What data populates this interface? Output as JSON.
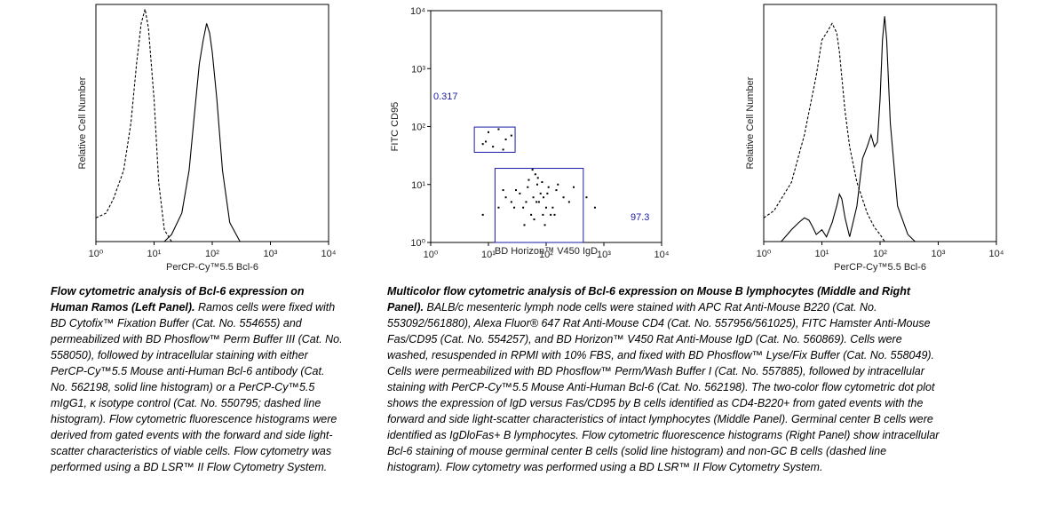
{
  "chart_data": [
    {
      "type": "line",
      "xlabel": "PerCP-Cy™5.5 Bcl-6",
      "ylabel": "Relative Cell Number",
      "xlog": true,
      "xlim": [
        1,
        10000
      ],
      "xticks": [
        {
          "value": 1,
          "label": "10⁰"
        },
        {
          "value": 10,
          "label": "10¹"
        },
        {
          "value": 100,
          "label": "10²"
        },
        {
          "value": 1000,
          "label": "10³"
        },
        {
          "value": 10000,
          "label": "10⁴"
        }
      ],
      "ylim": [
        0,
        100
      ],
      "series": [
        {
          "color": "#000000",
          "dashed": true,
          "x": [
            1,
            1.5,
            2,
            3,
            4,
            5,
            6,
            7,
            8,
            10,
            12,
            15,
            20
          ],
          "values": [
            10,
            12,
            18,
            30,
            50,
            75,
            92,
            98,
            90,
            60,
            25,
            5,
            0
          ]
        },
        {
          "color": "#000000",
          "dashed": false,
          "x": [
            15,
            20,
            30,
            40,
            50,
            60,
            70,
            80,
            90,
            100,
            120,
            150,
            200,
            300
          ],
          "values": [
            0,
            3,
            12,
            30,
            55,
            75,
            85,
            92,
            88,
            80,
            60,
            30,
            8,
            0
          ]
        }
      ]
    },
    {
      "type": "scatter",
      "xlabel": "BD Horizon™ V450 IgD",
      "ylabel": "FITC CD95",
      "xlog": true,
      "ylog": true,
      "xlim": [
        1,
        10000
      ],
      "xticks": [
        {
          "value": 1,
          "label": "10⁰"
        },
        {
          "value": 10,
          "label": "10¹"
        },
        {
          "value": 100,
          "label": "10²"
        },
        {
          "value": 1000,
          "label": "10³"
        },
        {
          "value": 10000,
          "label": "10⁴"
        }
      ],
      "ylim": [
        1,
        10000
      ],
      "yticks": [
        {
          "value": 1,
          "label": "10⁰"
        },
        {
          "value": 10,
          "label": "10¹"
        },
        {
          "value": 100,
          "label": "10²"
        },
        {
          "value": 1000,
          "label": "10³"
        },
        {
          "value": 10000,
          "label": "10⁴"
        }
      ],
      "gate_color": "#1a1aa6",
      "gates": [
        {
          "xrange": [
            5.7,
            29
          ],
          "yrange": [
            36,
            98
          ],
          "value": 0.317
        },
        {
          "xrange": [
            13,
            440
          ],
          "yrange": [
            1,
            19
          ],
          "value": 97.3
        }
      ],
      "series": [
        {
          "color": "#000000",
          "x": [
            60,
            45,
            80,
            100,
            30,
            70,
            120,
            50,
            90,
            25,
            150,
            40,
            65,
            110,
            55,
            75,
            35,
            200,
            85,
            95,
            20,
            130,
            48,
            62,
            72,
            160,
            28,
            105,
            58,
            140,
            18,
            250,
            42,
            68,
            88,
            300,
            15,
            500,
            700,
            8,
            8,
            10,
            12,
            15,
            20,
            25,
            9,
            18
          ],
          "values": [
            6,
            5,
            7,
            4,
            8,
            10,
            3,
            12,
            6,
            5,
            8,
            4,
            15,
            9,
            3,
            5,
            7,
            6,
            11,
            2,
            6,
            4,
            9,
            2.5,
            13,
            10,
            4,
            7,
            18,
            3,
            8,
            5,
            2,
            5,
            3,
            9,
            4,
            6,
            4,
            3,
            50,
            80,
            45,
            90,
            60,
            70,
            55,
            40
          ]
        }
      ]
    },
    {
      "type": "line",
      "xlabel": "PerCP-Cy™5.5 Bcl-6",
      "ylabel": "Relative Cell Number",
      "xlog": true,
      "xlim": [
        1,
        10000
      ],
      "xticks": [
        {
          "value": 1,
          "label": "10⁰"
        },
        {
          "value": 10,
          "label": "10¹"
        },
        {
          "value": 100,
          "label": "10²"
        },
        {
          "value": 1000,
          "label": "10³"
        },
        {
          "value": 10000,
          "label": "10⁴"
        }
      ],
      "ylim": [
        0,
        100
      ],
      "series": [
        {
          "color": "#000000",
          "dashed": true,
          "x": [
            1,
            1.5,
            2,
            3,
            5,
            8,
            10,
            12,
            15,
            18,
            20,
            25,
            30,
            40,
            60,
            80,
            100,
            120
          ],
          "values": [
            10,
            13,
            18,
            25,
            45,
            70,
            85,
            88,
            92,
            88,
            80,
            55,
            40,
            25,
            12,
            6,
            3,
            0
          ]
        },
        {
          "color": "#000000",
          "dashed": false,
          "x": [
            1,
            2,
            3,
            4,
            5,
            6,
            7,
            8,
            10,
            12,
            15,
            18,
            20,
            22,
            25,
            30,
            40,
            50,
            60,
            70,
            80,
            90,
            100,
            110,
            120,
            130,
            150,
            200,
            300,
            400
          ],
          "values": [
            0,
            0,
            5,
            8,
            10,
            9,
            6,
            3,
            5,
            2,
            8,
            15,
            20,
            18,
            10,
            2,
            15,
            35,
            40,
            45,
            40,
            42,
            60,
            85,
            95,
            85,
            50,
            15,
            3,
            0
          ]
        }
      ]
    }
  ],
  "captions": [
    {
      "heading": "Flow cytometric analysis of Bcl-6 expression on Human Ramos (Left Panel).",
      "body": "Ramos cells were fixed with BD Cytofix™ Fixation Buffer (Cat. No. 554655) and permeabilized with BD Phosflow™ Perm Buffer III (Cat. No. 558050), followed by intracellular staining with either PerCP-Cy™5.5 Mouse anti-Human Bcl-6 antibody (Cat. No. 562198, solid line histogram) or a PerCP-Cy™5.5 mIgG1, κ isotype control (Cat. No. 550795; dashed line histogram). Flow cytometric fluorescence histograms were derived from gated events with the forward and side light-scatter characteristics of viable cells. Flow cytometry was performed using a BD LSR™ II Flow Cytometry System."
    },
    {
      "heading": "Multicolor flow cytometric analysis of Bcl-6 expression on Mouse B lymphocytes (Middle and Right Panel).",
      "body": "BALB/c mesenteric lymph node cells were stained with APC Rat Anti-Mouse B220 (Cat. No. 553092/561880), Alexa Fluor® 647 Rat Anti-Mouse CD4 (Cat. No. 557956/561025), FITC Hamster Anti-Mouse Fas/CD95 (Cat. No. 554257), and BD Horizon™ V450 Rat Anti-Mouse IgD (Cat. No. 560869). Cells were washed, resuspended in RPMI with 10% FBS, and fixed with BD Phosflow™ Lyse/Fix Buffer (Cat. No. 558049). Cells were permeabilized with BD Phosflow™ Perm/Wash Buffer I (Cat. No. 557885), followed by intracellular staining with PerCP-Cy™5.5 Mouse Anti-Human Bcl-6 (Cat. No. 562198). The two-color flow cytometric dot plot shows the expression of IgD versus Fas/CD95 by B cells identified as CD4-B220+ from gated events with the forward and side light-scatter characteristics of intact lymphocytes (Middle Panel). Germinal center B cells were identified as IgDloFas+ B lymphocytes. Flow cytometric fluorescence histograms (Right Panel) show intracellular Bcl-6 staining of mouse germinal center B cells (solid line histogram) and non-GC B cells (dashed line histogram). Flow cytometry was performed using a BD LSR™ II Flow Cytometry System."
    }
  ]
}
